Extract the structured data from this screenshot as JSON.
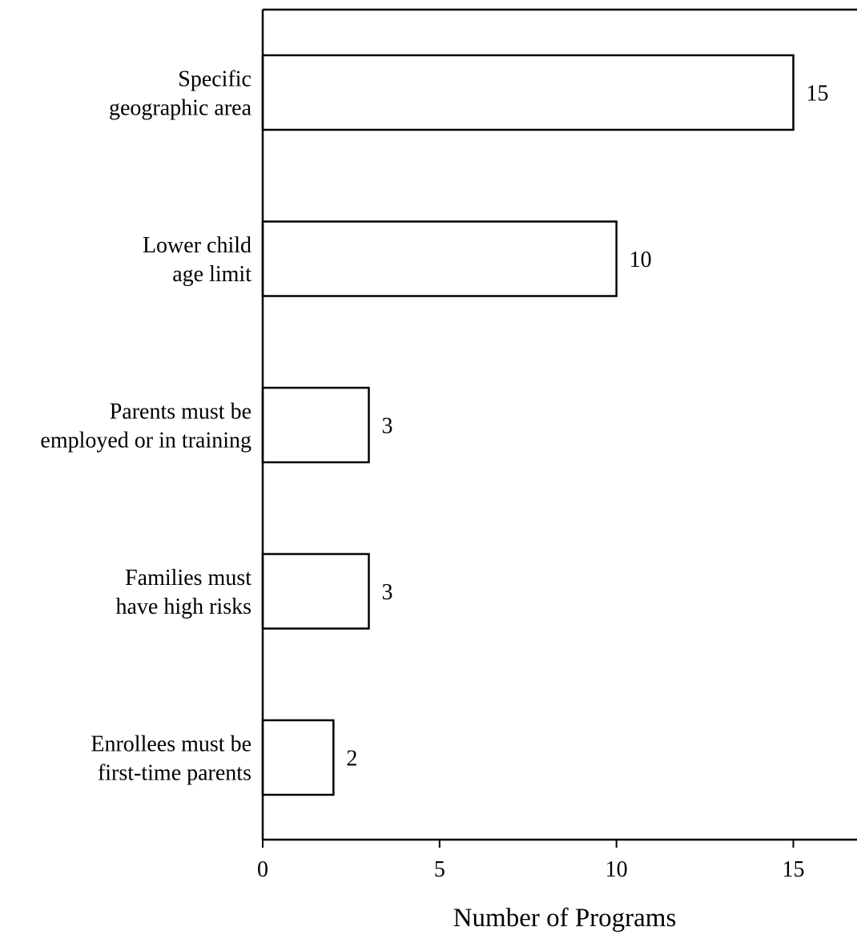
{
  "chart_data": {
    "type": "bar",
    "orientation": "horizontal",
    "categories": [
      [
        "Specific",
        "geographic area"
      ],
      [
        "Lower child",
        "age limit"
      ],
      [
        "Parents must be",
        "employed or in training"
      ],
      [
        "Families must",
        "have high risks"
      ],
      [
        "Enrollees must be",
        "first-time parents"
      ]
    ],
    "values": [
      15,
      10,
      3,
      3,
      2
    ],
    "value_labels": [
      "15",
      "10",
      "3",
      "3",
      "2"
    ],
    "xlabel": "Number of Programs",
    "ylabel": "",
    "title": "",
    "xlim": [
      0,
      16.8
    ],
    "xticks": [
      0,
      5,
      10,
      15
    ],
    "tick_labels": [
      "0",
      "5",
      "10",
      "15"
    ],
    "grid": false,
    "colors": {
      "bar_fill": "#ffffff",
      "bar_stroke": "#000000",
      "text": "#000000"
    }
  }
}
